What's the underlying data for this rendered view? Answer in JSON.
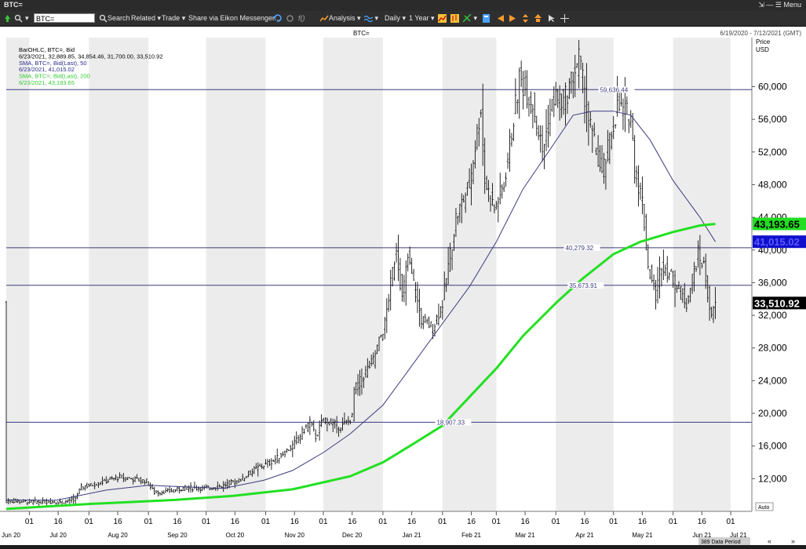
{
  "window": {
    "title": "BTC=",
    "min_label": "—",
    "menu_label": "Menu"
  },
  "toolbar": {
    "ric": "BTC=",
    "search": "Search",
    "related": "Related",
    "trade": "Trade",
    "share": "Share via Eikon Messenger...",
    "analysis": "Analysis",
    "interval": "Daily",
    "range": "1 Year",
    "icons": [
      "back-arrow-icon",
      "refresh-icon",
      "formula-icon",
      "chart-analysis-icon",
      "crosshair-icon",
      "line-chart-icon",
      "draw-icon",
      "zoom-icon",
      "arrow-left-icon",
      "arrow-right-icon",
      "page-icon",
      "cursor-icon"
    ]
  },
  "header": {
    "ric": "BTC=",
    "date_range": "6/19/2020 - 7/12/2021 (GMT)"
  },
  "legend": [
    {
      "text": "BarOHLC, BTC=, Bid",
      "color": "#000000"
    },
    {
      "text": "6/23/2021, 32,889.85, 34,854.46, 31,700.00, 33,510.92",
      "color": "#000000"
    },
    {
      "text": "SMA, BTC=, Bid(Last), 50",
      "color": "#2b2b8f"
    },
    {
      "text": "6/23/2021, 41,015.02",
      "color": "#2b2b8f"
    },
    {
      "text": "SMA, BTC=, Bid(Last), 200",
      "color": "#33cc33"
    },
    {
      "text": "6/23/2021, 43,193.65",
      "color": "#33cc33"
    }
  ],
  "footer": {
    "data_period": "389 Data Period",
    "auto": "Auto"
  },
  "colors": {
    "bars": "#111111",
    "sma50": "#3b3b80",
    "sma200": "#22e022",
    "hlines": "#3b3b80",
    "bg_band": "#ececec",
    "label_sma200": "#22dd22",
    "label_sma50": "#1010cc",
    "label_last": "#000000"
  },
  "chart_data": {
    "type": "line",
    "ylabel": "Price\nUSD",
    "ylim": [
      8000,
      66000
    ],
    "yticks": [
      "12,000",
      "16,000",
      "20,000",
      "24,000",
      "28,000",
      "32,000",
      "36,000",
      "40,000",
      "44,000",
      "48,000",
      "52,000",
      "56,000",
      "60,000"
    ],
    "y_tick_values": [
      12000,
      16000,
      20000,
      24000,
      28000,
      32000,
      36000,
      40000,
      44000,
      48000,
      52000,
      56000,
      60000
    ],
    "x_range": [
      "2020-06-19",
      "2021-07-12"
    ],
    "x_ticks": [
      {
        "date": "2020-07-01",
        "label": "01"
      },
      {
        "date": "2020-07-16",
        "label": "16"
      },
      {
        "date": "2020-08-01",
        "label": "01"
      },
      {
        "date": "2020-08-16",
        "label": "16"
      },
      {
        "date": "2020-09-01",
        "label": "01"
      },
      {
        "date": "2020-09-16",
        "label": "16"
      },
      {
        "date": "2020-10-01",
        "label": "01"
      },
      {
        "date": "2020-10-16",
        "label": "16"
      },
      {
        "date": "2020-11-01",
        "label": "01"
      },
      {
        "date": "2020-11-16",
        "label": "16"
      },
      {
        "date": "2020-12-01",
        "label": "01"
      },
      {
        "date": "2020-12-16",
        "label": "16"
      },
      {
        "date": "2021-01-01",
        "label": "01"
      },
      {
        "date": "2021-01-16",
        "label": "16"
      },
      {
        "date": "2021-02-01",
        "label": "01"
      },
      {
        "date": "2021-02-16",
        "label": "16"
      },
      {
        "date": "2021-03-01",
        "label": "01"
      },
      {
        "date": "2021-03-16",
        "label": "16"
      },
      {
        "date": "2021-04-01",
        "label": "01"
      },
      {
        "date": "2021-04-16",
        "label": "16"
      },
      {
        "date": "2021-05-01",
        "label": "01"
      },
      {
        "date": "2021-05-16",
        "label": "16"
      },
      {
        "date": "2021-06-01",
        "label": "01"
      },
      {
        "date": "2021-06-16",
        "label": "16"
      },
      {
        "date": "2021-07-01",
        "label": "01"
      }
    ],
    "month_labels": [
      {
        "date": "2020-06-21",
        "label": "Jun 20"
      },
      {
        "date": "2020-07-16",
        "label": "Jul 20"
      },
      {
        "date": "2020-08-16",
        "label": "Aug 20"
      },
      {
        "date": "2020-09-16",
        "label": "Sep 20"
      },
      {
        "date": "2020-10-16",
        "label": "Oct 20"
      },
      {
        "date": "2020-11-16",
        "label": "Nov 20"
      },
      {
        "date": "2020-12-16",
        "label": "Dec 20"
      },
      {
        "date": "2021-01-16",
        "label": "Jan 21"
      },
      {
        "date": "2021-02-16",
        "label": "Feb 21"
      },
      {
        "date": "2021-03-16",
        "label": "Mar 21"
      },
      {
        "date": "2021-04-16",
        "label": "Apr 21"
      },
      {
        "date": "2021-05-16",
        "label": "May 21"
      },
      {
        "date": "2021-06-16",
        "label": "Jun 21"
      },
      {
        "date": "2021-07-05",
        "label": "Jul 21"
      }
    ],
    "hlines": [
      {
        "value": 59636.44,
        "label": "59,636.44",
        "label_date": "2021-04-24"
      },
      {
        "value": 40279.32,
        "label": "40,279.32",
        "label_date": "2021-04-06"
      },
      {
        "value": 35673.91,
        "label": "35,673.91",
        "label_date": "2021-04-08"
      },
      {
        "value": 18907.33,
        "label": "18,907.33",
        "label_date": "2021-01-29"
      }
    ],
    "value_labels": [
      {
        "text": "43,193.65",
        "value": 43193.65,
        "role": "sma200"
      },
      {
        "text": "41,015.02",
        "value": 41015.02,
        "role": "sma50"
      },
      {
        "text": "33,510.92",
        "value": 33510.92,
        "role": "last"
      }
    ],
    "price_anchors": [
      [
        "2020-06-19",
        9300
      ],
      [
        "2020-07-01",
        9150
      ],
      [
        "2020-07-20",
        9200
      ],
      [
        "2020-07-25",
        9600
      ],
      [
        "2020-07-28",
        11000
      ],
      [
        "2020-08-02",
        11200
      ],
      [
        "2020-08-17",
        12200
      ],
      [
        "2020-08-31",
        11700
      ],
      [
        "2020-09-04",
        10300
      ],
      [
        "2020-09-10",
        10400
      ],
      [
        "2020-09-20",
        10900
      ],
      [
        "2020-09-30",
        10800
      ],
      [
        "2020-10-09",
        11100
      ],
      [
        "2020-10-20",
        12000
      ],
      [
        "2020-10-26",
        13100
      ],
      [
        "2020-11-05",
        14200
      ],
      [
        "2020-11-15",
        16000
      ],
      [
        "2020-11-24",
        19000
      ],
      [
        "2020-11-27",
        17100
      ],
      [
        "2020-12-01",
        19300
      ],
      [
        "2020-12-10",
        18300
      ],
      [
        "2020-12-16",
        19500
      ],
      [
        "2020-12-17",
        22800
      ],
      [
        "2020-12-27",
        26500
      ],
      [
        "2021-01-02",
        31000
      ],
      [
        "2021-01-08",
        40500
      ],
      [
        "2021-01-11",
        34000
      ],
      [
        "2021-01-14",
        39000
      ],
      [
        "2021-01-21",
        31500
      ],
      [
        "2021-01-27",
        30500
      ],
      [
        "2021-02-01",
        33500
      ],
      [
        "2021-02-08",
        44000
      ],
      [
        "2021-02-15",
        48000
      ],
      [
        "2021-02-21",
        57500
      ],
      [
        "2021-02-23",
        48500
      ],
      [
        "2021-02-28",
        45000
      ],
      [
        "2021-03-05",
        48000
      ],
      [
        "2021-03-13",
        61000
      ],
      [
        "2021-03-20",
        58000
      ],
      [
        "2021-03-25",
        52000
      ],
      [
        "2021-03-31",
        58800
      ],
      [
        "2021-04-05",
        58000
      ],
      [
        "2021-04-13",
        63500
      ],
      [
        "2021-04-18",
        56000
      ],
      [
        "2021-04-25",
        49000
      ],
      [
        "2021-05-03",
        57500
      ],
      [
        "2021-05-10",
        56500
      ],
      [
        "2021-05-12",
        50000
      ],
      [
        "2021-05-16",
        46000
      ],
      [
        "2021-05-19",
        38000
      ],
      [
        "2021-05-23",
        34500
      ],
      [
        "2021-05-26",
        38500
      ],
      [
        "2021-06-01",
        36500
      ],
      [
        "2021-06-08",
        33500
      ],
      [
        "2021-06-14",
        39500
      ],
      [
        "2021-06-17",
        38000
      ],
      [
        "2021-06-21",
        31500
      ],
      [
        "2021-06-23",
        33510
      ]
    ],
    "sma50": [
      [
        "2020-06-19",
        9400
      ],
      [
        "2020-07-15",
        9350
      ],
      [
        "2020-08-10",
        10600
      ],
      [
        "2020-09-01",
        11200
      ],
      [
        "2020-09-20",
        11000
      ],
      [
        "2020-10-10",
        10800
      ],
      [
        "2020-10-31",
        11800
      ],
      [
        "2020-11-15",
        13000
      ],
      [
        "2020-12-01",
        15200
      ],
      [
        "2020-12-15",
        17500
      ],
      [
        "2021-01-01",
        21000
      ],
      [
        "2021-01-15",
        25500
      ],
      [
        "2021-02-01",
        31000
      ],
      [
        "2021-02-15",
        35500
      ],
      [
        "2021-03-01",
        41000
      ],
      [
        "2021-03-15",
        47500
      ],
      [
        "2021-03-31",
        53000
      ],
      [
        "2021-04-10",
        56500
      ],
      [
        "2021-04-20",
        57000
      ],
      [
        "2021-05-01",
        57000
      ],
      [
        "2021-05-10",
        56500
      ],
      [
        "2021-05-20",
        53500
      ],
      [
        "2021-06-01",
        48500
      ],
      [
        "2021-06-15",
        44000
      ],
      [
        "2021-06-23",
        41015
      ]
    ],
    "sma200": [
      [
        "2020-06-19",
        8300
      ],
      [
        "2020-08-01",
        8900
      ],
      [
        "2020-09-15",
        9400
      ],
      [
        "2020-10-15",
        9900
      ],
      [
        "2020-11-15",
        10700
      ],
      [
        "2020-12-15",
        12300
      ],
      [
        "2021-01-01",
        14000
      ],
      [
        "2021-01-15",
        16000
      ],
      [
        "2021-02-01",
        18500
      ],
      [
        "2021-02-15",
        22000
      ],
      [
        "2021-03-01",
        25500
      ],
      [
        "2021-03-15",
        29500
      ],
      [
        "2021-04-01",
        33500
      ],
      [
        "2021-04-15",
        36500
      ],
      [
        "2021-05-01",
        39500
      ],
      [
        "2021-05-15",
        41000
      ],
      [
        "2021-06-01",
        42200
      ],
      [
        "2021-06-15",
        43000
      ],
      [
        "2021-06-23",
        43193
      ]
    ]
  }
}
